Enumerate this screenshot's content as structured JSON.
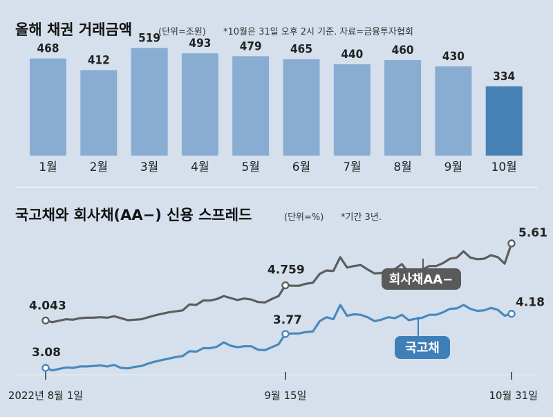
{
  "colors": {
    "background": "#d5e0ec",
    "bar": "#89acd2",
    "bar_highlight": "#4681b5",
    "corporate_line": "#5d5d5d",
    "treasury_line": "#4a88bd",
    "corporate_tag": "#5a5a5a",
    "treasury_tag": "#3f7fb8",
    "divider": "#f2f6fa"
  },
  "chart_data": [
    {
      "type": "bar",
      "title": "올해 채권 거래금액",
      "unit_note": "(단위=조원)",
      "source_note": "*10월은 31일 오후 2시 기준. 자료=금융투자협회",
      "categories": [
        "1월",
        "2월",
        "3월",
        "4월",
        "5월",
        "6월",
        "7월",
        "8월",
        "9월",
        "10월"
      ],
      "values": [
        468,
        412,
        519,
        493,
        479,
        465,
        440,
        460,
        430,
        334
      ],
      "highlight_index": 9,
      "ylim": [
        0,
        540
      ],
      "legend": "none"
    },
    {
      "type": "line",
      "title": "국고채와 회사채(AA−) 신용 스프레드",
      "unit_note": "(단위=%)",
      "source_note": "*기간 3년.",
      "x_ticks": [
        "2022년 8월 1일",
        "9월 15일",
        "10월 31일"
      ],
      "ylim": [
        2.8,
        5.9
      ],
      "series": [
        {
          "name": "회사채AA−",
          "values": [
            4.043,
            4.01,
            4.04,
            4.07,
            4.06,
            4.09,
            4.1,
            4.1,
            4.11,
            4.1,
            4.13,
            4.09,
            4.05,
            4.06,
            4.07,
            4.11,
            4.15,
            4.18,
            4.21,
            4.23,
            4.25,
            4.37,
            4.36,
            4.45,
            4.45,
            4.48,
            4.54,
            4.5,
            4.46,
            4.49,
            4.47,
            4.42,
            4.41,
            4.48,
            4.541,
            4.759,
            4.75,
            4.75,
            4.79,
            4.81,
            4.99,
            5.06,
            5.05,
            5.33,
            5.12,
            5.15,
            5.17,
            5.08,
            5.0,
            5.01,
            5.07,
            5.09,
            5.19,
            5.01,
            5.06,
            5.08,
            5.15,
            5.15,
            5.21,
            5.3,
            5.32,
            5.45,
            5.32,
            5.29,
            5.3,
            5.37,
            5.33,
            5.2,
            5.61
          ],
          "start_label": "4.043",
          "mid_label": "4.759",
          "end_label": "5.61"
        },
        {
          "name": "국고채",
          "values": [
            3.08,
            3.03,
            3.06,
            3.09,
            3.08,
            3.11,
            3.11,
            3.12,
            3.13,
            3.11,
            3.14,
            3.08,
            3.07,
            3.1,
            3.12,
            3.17,
            3.21,
            3.24,
            3.27,
            3.3,
            3.32,
            3.42,
            3.41,
            3.48,
            3.48,
            3.51,
            3.6,
            3.53,
            3.5,
            3.52,
            3.52,
            3.45,
            3.44,
            3.5,
            3.56,
            3.77,
            3.78,
            3.78,
            3.81,
            3.82,
            4.03,
            4.11,
            4.07,
            4.36,
            4.14,
            4.17,
            4.16,
            4.11,
            4.03,
            4.06,
            4.11,
            4.09,
            4.16,
            4.05,
            4.08,
            4.1,
            4.16,
            4.16,
            4.21,
            4.28,
            4.29,
            4.36,
            4.28,
            4.24,
            4.25,
            4.3,
            4.26,
            4.14,
            4.18
          ],
          "start_label": "3.08",
          "mid_label": "3.77",
          "end_label": "4.18"
        }
      ],
      "legend": "inline-tags"
    }
  ]
}
